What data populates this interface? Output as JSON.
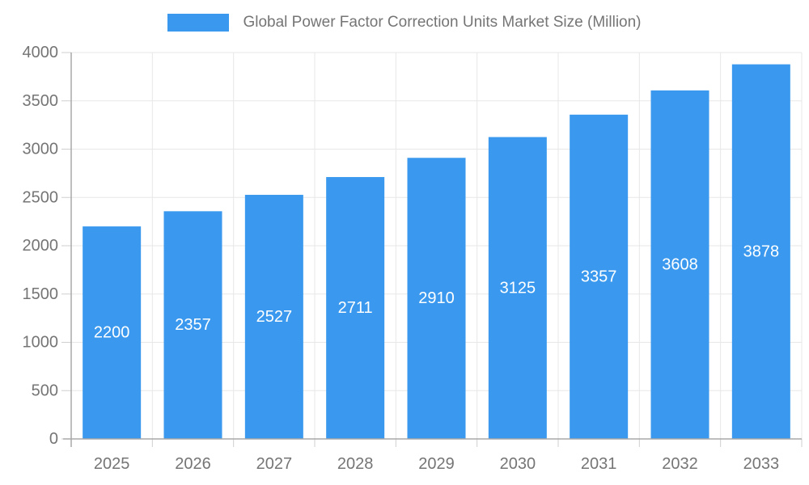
{
  "chart_data": {
    "type": "bar",
    "title": "Global Power Factor Correction Units Market Size (Million)",
    "categories": [
      "2025",
      "2026",
      "2027",
      "2028",
      "2029",
      "2030",
      "2031",
      "2032",
      "2033"
    ],
    "values": [
      2200,
      2357,
      2527,
      2711,
      2910,
      3125,
      3357,
      3608,
      3878
    ],
    "ylabel": "",
    "xlabel": "",
    "ylim": [
      0,
      4000
    ],
    "ytick_step": 500,
    "ytick_labels": [
      "0",
      "500",
      "1000",
      "1500",
      "2000",
      "2500",
      "3000",
      "3500",
      "4000"
    ],
    "grid": true,
    "legend_position": "top",
    "value_label_position": "inside-center",
    "colors": {
      "bar": "#3A99EE",
      "bar_value_label": "#ffffff",
      "axis_line": "#a8a8a8",
      "gridline": "#e7e7e7",
      "tick_mark": "#cfcfcf",
      "axis_text": "#757575",
      "background": "#ffffff"
    }
  }
}
